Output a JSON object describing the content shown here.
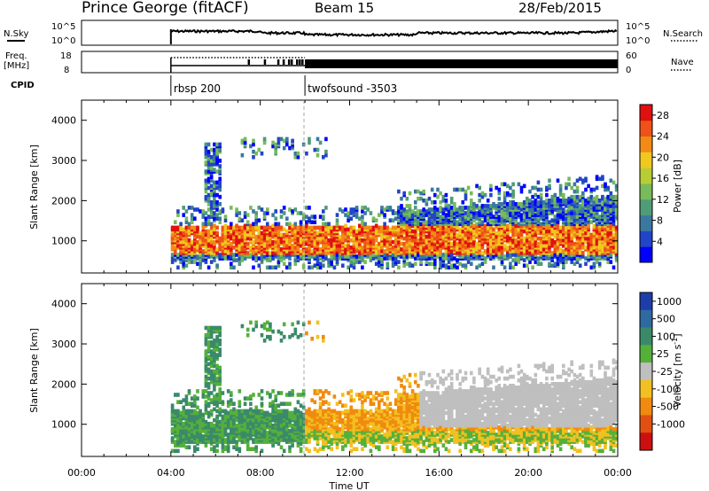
{
  "header": {
    "station": "Prince George (fitACF)",
    "beam": "Beam 15",
    "date": "28/Feb/2015"
  },
  "top_panels": {
    "nsky_label": "N.Sky",
    "nsky_ticks": [
      "10^5",
      "10^0"
    ],
    "nsearch_label": "N.Search",
    "nsearch_ticks": [
      "10^5",
      "10^0"
    ],
    "freq_label_1": "Freq.",
    "freq_label_2": "[MHz]",
    "freq_ticks": [
      "18",
      "8"
    ],
    "nave_label": "Nave",
    "nave_ticks": [
      "60",
      "0"
    ],
    "cpid_label": "CPID",
    "cpid_segments": [
      {
        "start_hour": 4.0,
        "name": "rbsp 200"
      },
      {
        "start_hour": 10.0,
        "name": "twofsound -3503"
      }
    ]
  },
  "colors": {
    "power_scale": [
      "#0000ff",
      "#2244c8",
      "#3a78a0",
      "#4f9c78",
      "#78bb5a",
      "#b8cc35",
      "#f0c820",
      "#f28b15",
      "#ee5218",
      "#e01010"
    ],
    "velocity_scale": [
      "#1c3ea8",
      "#2e6aa0",
      "#3a8a6a",
      "#55b03a",
      "#bfbfbf",
      "#f2c020",
      "#f08a10",
      "#e05010",
      "#cc1010"
    ]
  },
  "chart_data": [
    {
      "type": "heatmap",
      "name": "power",
      "ylabel": "Slant Range [km]",
      "xlabel": "",
      "yticks": [
        "1000",
        "2000",
        "3000",
        "4000"
      ],
      "ylim": [
        200,
        4500
      ],
      "xlim": [
        0,
        24
      ],
      "colorbar_label": "Power [dB]",
      "colorbar_ticks": [
        "4",
        "8",
        "12",
        "16",
        "20",
        "24",
        "28"
      ],
      "colorbar_range": [
        0,
        30
      ]
    },
    {
      "type": "heatmap",
      "name": "velocity",
      "ylabel": "Slant Range [km]",
      "xlabel": "Time UT",
      "xticks": [
        "00:00",
        "04:00",
        "08:00",
        "12:00",
        "16:00",
        "20:00",
        "00:00"
      ],
      "yticks": [
        "1000",
        "2000",
        "3000",
        "4000"
      ],
      "ylim": [
        200,
        4500
      ],
      "xlim": [
        0,
        24
      ],
      "colorbar_label": "Velocity",
      "colorbar_unit": "[m s",
      "colorbar_unit_exp": "-1",
      "colorbar_unit_end": "]",
      "colorbar_ticks": [
        "1000",
        "500",
        "100",
        "25",
        "-25",
        "-100",
        "-500",
        "-1000"
      ]
    }
  ]
}
